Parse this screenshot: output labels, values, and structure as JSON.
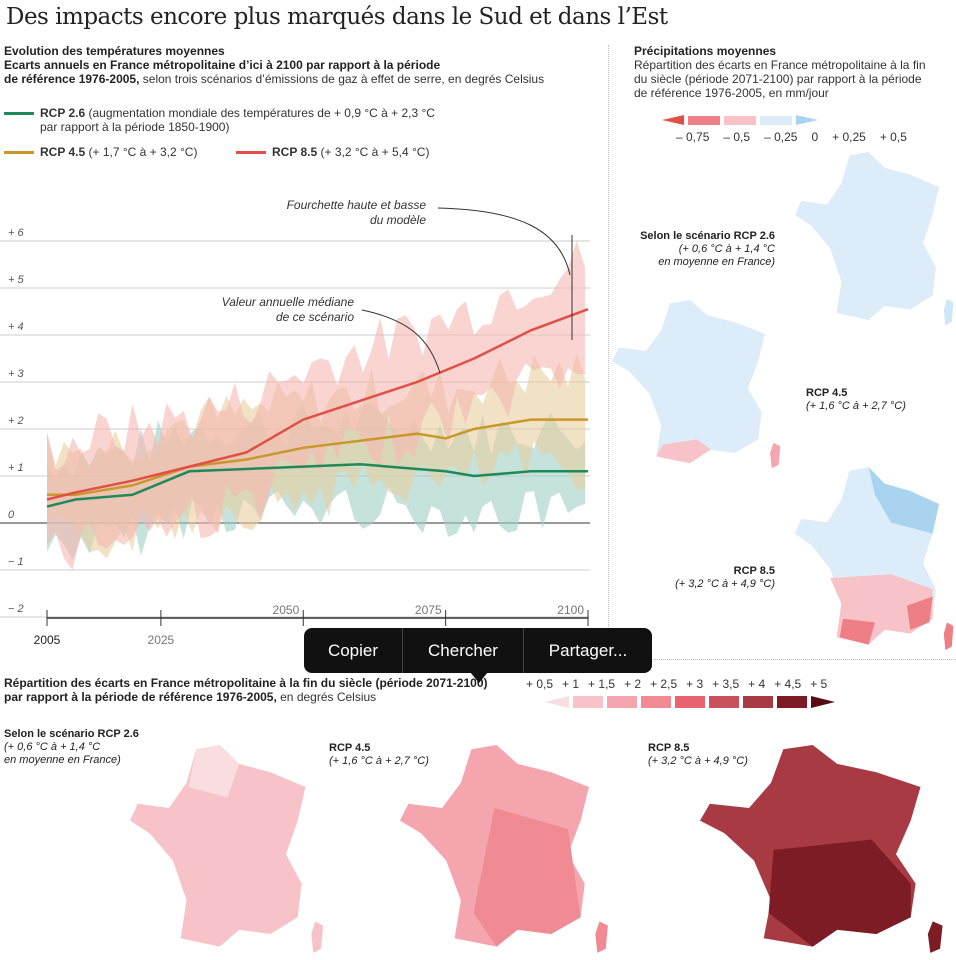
{
  "title": "Des impacts encore plus marqués dans le Sud et dans l’Est",
  "left": {
    "heading": "Evolution des températures moyennes",
    "sub1": "Ecarts annuels en France métropolitaine d’ici à 2100 par rapport à la période",
    "sub2_bold": "de référence 1976-2005,",
    "sub2_rest": " selon trois scénarios d’émissions de gaz à effet de serre, en degrés Celsius",
    "legend": [
      {
        "name": "RCP 2.6",
        "desc": "(augmentation mondiale des températures de + 0,9 °C à + 2,3 °C",
        "desc2": "par rapport à la période 1850-1900)"
      },
      {
        "name": "RCP 4.5",
        "desc": "(+ 1,7 °C à + 3,2 °C)"
      },
      {
        "name": "RCP 8.5",
        "desc": "(+ 3,2 °C à + 5,4 °C)"
      }
    ],
    "annot1": "Fourchette haute et basse",
    "annot1b": "du modèle",
    "annot2": "Valeur annuelle médiane",
    "annot2b": "de ce scénario"
  },
  "chart_data": {
    "type": "line",
    "title": "Evolution des températures moyennes",
    "ylabel": "°C",
    "ylim": [
      -2,
      6
    ],
    "xlim": [
      2005,
      2100
    ],
    "yticks": [
      "− 2",
      "− 1",
      "0",
      "+ 1",
      "+ 2",
      "+ 3",
      "+ 4",
      "+ 5",
      "+ 6"
    ],
    "xticks": [
      "2005",
      "2025",
      "2050",
      "2075",
      "2100"
    ],
    "x": [
      2005,
      2010,
      2020,
      2030,
      2040,
      2050,
      2060,
      2070,
      2075,
      2080,
      2090,
      2100
    ],
    "series": [
      {
        "name": "RCP 2.6",
        "color": "#1e8a5a",
        "band": "#9fcfc4",
        "spread": 1.0,
        "values": [
          0.35,
          0.5,
          0.6,
          1.1,
          1.15,
          1.2,
          1.25,
          1.15,
          1.1,
          1.0,
          1.1,
          1.1
        ]
      },
      {
        "name": "RCP 4.5",
        "color": "#c9972a",
        "band": "#e8cfa0",
        "spread": 1.1,
        "values": [
          0.6,
          0.6,
          0.8,
          1.2,
          1.35,
          1.6,
          1.75,
          1.9,
          1.8,
          2.0,
          2.2,
          2.2
        ]
      },
      {
        "name": "RCP 8.5",
        "color": "#e05046",
        "band": "#f6b8b0",
        "spread": 1.2,
        "values": [
          0.5,
          0.65,
          0.9,
          1.2,
          1.5,
          2.2,
          2.6,
          3.0,
          3.25,
          3.5,
          4.1,
          4.55
        ]
      }
    ]
  },
  "menu": {
    "copy": "Copier",
    "search": "Chercher",
    "share": "Partager..."
  },
  "right": {
    "heading": "Précipitations moyennes",
    "sub1": "Répartition des écarts en France métropolitaine à la fin",
    "sub2": "du siècle (période 2071-2100) par rapport à la période",
    "sub3": "de référence 1976-2005, en mm/jour",
    "scale": [
      "– 0,75",
      "– 0,5",
      "– 0,25",
      "0",
      "+ 0,25",
      "+ 0,5"
    ],
    "maps": [
      {
        "label": "Selon le scénario RCP 2.6",
        "range": "(+ 0,6 °C à + 1,4 °C",
        "range2": "en moyenne en France)"
      },
      {
        "label": "RCP 4.5",
        "range": "(+ 1,6 °C à + 2,7 °C)"
      },
      {
        "label": "RCP 8.5",
        "range": "(+ 3,2 °C à + 4,9 °C)"
      }
    ]
  },
  "bottom": {
    "heading1": "Répartition des écarts en France métropolitaine à la fin du siècle (période 2071-2100)",
    "heading2_bold": "par rapport à la période de référence 1976-2005,",
    "heading2_rest": " en degrés Celsius",
    "scale": [
      "+ 0,5",
      "+ 1",
      "+ 1,5",
      "+ 2",
      "+ 2,5",
      "+ 3",
      "+ 3,5",
      "+ 4",
      "+ 4,5",
      "+ 5"
    ],
    "scale_colors": [
      "#f9dde0",
      "#f7c3c8",
      "#f4a5ad",
      "#f08a93",
      "#e8646e",
      "#c9515c",
      "#a83a44",
      "#7e1c26",
      "#5a0a12"
    ],
    "maps": [
      {
        "label": "Selon le scénario RCP 2.6",
        "range": "(+ 0,6 °C à + 1,4 °C",
        "range2": "en moyenne en France)"
      },
      {
        "label": "RCP 4.5",
        "range": "(+ 1,6 °C à + 2,7 °C)"
      },
      {
        "label": "RCP 8.5",
        "range": "(+ 3,2 °C à + 4,9 °C)"
      }
    ]
  }
}
